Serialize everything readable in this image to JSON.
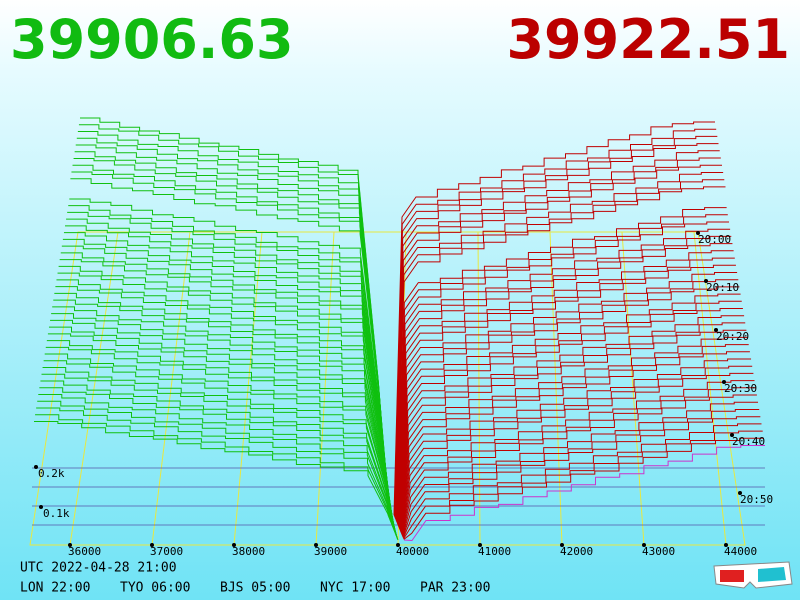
{
  "header": {
    "bid": "39906.63",
    "ask": "39922.51"
  },
  "axis": {
    "price_ticks": [
      "36000",
      "37000",
      "38000",
      "39000",
      "40000",
      "41000",
      "42000",
      "43000",
      "44000"
    ],
    "time_ticks": [
      "20:00",
      "20:10",
      "20:20",
      "20:30",
      "20:40",
      "20:50"
    ],
    "depth_ticks": [
      "0.2k",
      "0.1k"
    ]
  },
  "footer": {
    "utc": "UTC 2022-04-28 21:00",
    "zones": [
      "LON 22:00",
      "TYO 06:00",
      "BJS 05:00",
      "NYC 17:00",
      "PAR 23:00"
    ]
  }
}
